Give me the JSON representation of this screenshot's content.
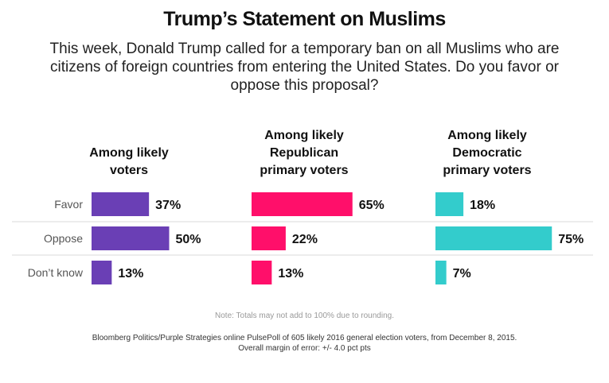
{
  "title": "Trump’s Statement on Muslims",
  "subtitle": "This week, Donald Trump called for a temporary ban on all Muslims who are citizens of foreign countries from entering the United States. Do you favor or oppose this proposal?",
  "note": "Note: Totals may not add to 100% due to rounding.",
  "source_line1": "Bloomberg Politics/Purple Strategies online PulsePoll of 605 likely 2016 general election voters, from December 8, 2015.",
  "source_line2": "Overall margin of error: +/- 4.0 pct pts",
  "chart_data": [
    {
      "type": "bar",
      "title": "Among likely voters",
      "title_lines": [
        "Among likely",
        "voters"
      ],
      "categories": [
        "Favor",
        "Oppose",
        "Don’t know"
      ],
      "values": [
        37,
        50,
        13
      ],
      "labels": [
        "37%",
        "50%",
        "13%"
      ],
      "color": "#6a3fb5"
    },
    {
      "type": "bar",
      "title": "Among likely Republican primary voters",
      "title_lines": [
        "Among likely",
        "Republican",
        "primary voters"
      ],
      "categories": [
        "Favor",
        "Oppose",
        "Don’t know"
      ],
      "values": [
        65,
        22,
        13
      ],
      "labels": [
        "65%",
        "22%",
        "13%"
      ],
      "color": "#ff0f6a"
    },
    {
      "type": "bar",
      "title": "Among likely Democratic primary voters",
      "title_lines": [
        "Among likely",
        "Democratic",
        "primary voters"
      ],
      "categories": [
        "Favor",
        "Oppose",
        "Don’t know"
      ],
      "values": [
        18,
        75,
        7
      ],
      "labels": [
        "18%",
        "75%",
        "7%"
      ],
      "color": "#33cccc"
    }
  ]
}
